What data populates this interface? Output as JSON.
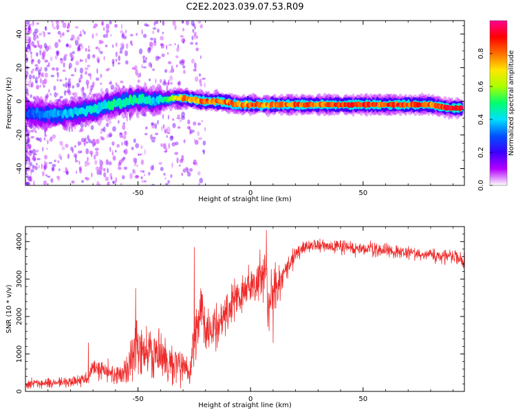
{
  "chart_data": [
    {
      "type": "heatmap",
      "title": "C2E2.2023.039.07.53.R09",
      "xlabel": "Height of straight line (km)",
      "ylabel": "Frequency (Hz)",
      "xlim": [
        -100,
        95
      ],
      "ylim": [
        -50,
        48
      ],
      "xticks": [
        -50,
        0,
        50
      ],
      "yticks": [
        -40,
        -20,
        0,
        20,
        40
      ],
      "colorbar": {
        "label": "Normalized spectral amplitude",
        "range": [
          0,
          1
        ],
        "ticks": [
          "0.0",
          "0.2",
          "0.4",
          "0.6",
          "0.8"
        ],
        "colormap": "rainbow (violet-blue-cyan-green-yellow-red-magenta)",
        "stops": [
          "#ffffff",
          "#b400ff",
          "#3c00ff",
          "#0050ff",
          "#00e0ff",
          "#00ff6e",
          "#aaff00",
          "#ffe600",
          "#ff6e00",
          "#ff0000",
          "#ff0090"
        ]
      },
      "ridge": {
        "description": "centerline frequency (Hz) of the main ridge vs height (km)",
        "x": [
          -100,
          -90,
          -80,
          -70,
          -65,
          -60,
          -55,
          -50,
          -45,
          -42,
          -38,
          -33,
          -30,
          -25,
          -20,
          -15,
          -10,
          -5,
          0,
          5,
          10,
          20,
          30,
          40,
          50,
          60,
          70,
          80,
          88,
          95
        ],
        "freq": [
          -7,
          -8,
          -7,
          -5,
          -3,
          -1,
          0,
          1,
          1,
          0,
          1,
          2,
          2,
          1,
          0,
          0,
          -1,
          -2,
          -2,
          -2,
          -2,
          -2,
          -2,
          -2,
          -2,
          -2,
          -2,
          -2,
          -4,
          -4
        ],
        "peak_amplitude": [
          0.3,
          0.35,
          0.4,
          0.45,
          0.45,
          0.5,
          0.5,
          0.5,
          0.45,
          0.4,
          0.5,
          0.7,
          0.8,
          0.8,
          0.85,
          0.85,
          0.85,
          0.8,
          0.85,
          0.85,
          0.8,
          0.85,
          0.85,
          0.9,
          0.9,
          0.9,
          0.9,
          0.85,
          0.95,
          0.95
        ]
      },
      "grid": false
    },
    {
      "type": "line",
      "title": "",
      "xlabel": "Height of straight line (km)",
      "ylabel": "SNR (10 * v/v)",
      "xlim": [
        -100,
        95
      ],
      "ylim": [
        0,
        4400
      ],
      "xticks": [
        -50,
        0,
        50
      ],
      "yticks": [
        0,
        1000,
        2000,
        3000,
        4000
      ],
      "series": [
        {
          "color": "#ee2b2b",
          "x": [
            -100,
            -90,
            -80,
            -73,
            -70,
            -65,
            -60,
            -55,
            -52,
            -50,
            -45,
            -40,
            -35,
            -30,
            -27,
            -25,
            -22,
            -20,
            -15,
            -10,
            -5,
            0,
            3,
            5,
            7,
            8,
            10,
            13,
            15,
            18,
            20,
            25,
            30,
            40,
            50,
            60,
            70,
            80,
            90,
            95
          ],
          "mean": [
            200,
            220,
            260,
            320,
            650,
            550,
            450,
            500,
            1000,
            1200,
            1100,
            1000,
            800,
            700,
            400,
            1400,
            2200,
            1500,
            1800,
            2200,
            2600,
            2800,
            3000,
            3200,
            3300,
            2000,
            3000,
            2800,
            3200,
            3400,
            3700,
            3850,
            3900,
            3850,
            3800,
            3750,
            3700,
            3650,
            3600,
            3500
          ],
          "noise": [
            120,
            120,
            130,
            150,
            250,
            250,
            250,
            350,
            600,
            700,
            650,
            600,
            500,
            450,
            300,
            800,
            700,
            600,
            600,
            550,
            500,
            450,
            500,
            600,
            650,
            700,
            600,
            500,
            350,
            250,
            200,
            180,
            170,
            170,
            160,
            160,
            160,
            160,
            180,
            200
          ],
          "spikes": [
            {
              "x": -72,
              "y": 1300
            },
            {
              "x": -51,
              "y": 2750
            },
            {
              "x": -25,
              "y": 3850
            },
            {
              "x": 7,
              "y": 800
            },
            {
              "x": 7,
              "y": 4300
            },
            {
              "x": 10,
              "y": 1300
            }
          ]
        }
      ],
      "grid": false
    }
  ]
}
